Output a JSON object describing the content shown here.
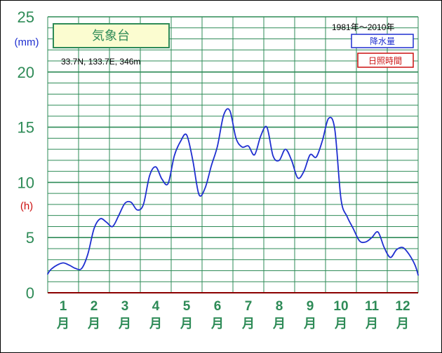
{
  "chart_data": {
    "type": "line",
    "title": "気象台",
    "period": "1981年〜2010年",
    "location": "33.7N,  133.7E,  346m",
    "y_unit_left": "(mm)",
    "y_unit_right": "(h)",
    "yticks": [
      "0",
      "5",
      "10",
      "15",
      "20",
      "25"
    ],
    "ylim": [
      0,
      25
    ],
    "xlim": [
      0.5,
      12.5
    ],
    "grid": true,
    "legend": [
      {
        "label": "降水量",
        "color": "#1f2fd0"
      },
      {
        "label": "日照時間",
        "color": "#cc1111"
      }
    ],
    "month_labels": [
      "1",
      "2",
      "3",
      "4",
      "5",
      "6",
      "7",
      "8",
      "9",
      "10",
      "11",
      "12"
    ],
    "month_suffix": "月",
    "series": [
      {
        "name": "降水量",
        "color": "#1f2fd0",
        "x": [
          0.5,
          0.6,
          0.8,
          1.0,
          1.2,
          1.4,
          1.6,
          1.8,
          2.0,
          2.2,
          2.4,
          2.6,
          2.8,
          3.0,
          3.2,
          3.4,
          3.6,
          3.8,
          4.0,
          4.2,
          4.4,
          4.6,
          4.8,
          5.0,
          5.2,
          5.4,
          5.6,
          5.8,
          6.0,
          6.2,
          6.4,
          6.6,
          6.8,
          7.0,
          7.2,
          7.4,
          7.6,
          7.8,
          8.0,
          8.2,
          8.4,
          8.6,
          8.8,
          9.0,
          9.2,
          9.4,
          9.6,
          9.8,
          10.0,
          10.2,
          10.4,
          10.6,
          10.8,
          11.0,
          11.2,
          11.4,
          11.6,
          11.8,
          12.0,
          12.2,
          12.4,
          12.5
        ],
        "values": [
          1.7,
          2.1,
          2.5,
          2.7,
          2.5,
          2.2,
          2.2,
          3.5,
          5.8,
          6.7,
          6.4,
          6.0,
          7.0,
          8.1,
          8.2,
          7.5,
          8.0,
          10.6,
          11.4,
          10.3,
          9.9,
          12.4,
          13.7,
          14.3,
          12.0,
          8.9,
          9.5,
          11.5,
          13.3,
          16.1,
          16.5,
          14.0,
          13.2,
          13.3,
          12.5,
          14.2,
          15.0,
          12.4,
          12.0,
          13.0,
          12.0,
          10.4,
          11.0,
          12.5,
          12.3,
          13.8,
          15.8,
          14.8,
          8.5,
          6.9,
          5.8,
          4.7,
          4.6,
          5.0,
          5.5,
          4.1,
          3.2,
          3.9,
          4.1,
          3.5,
          2.5,
          1.6
        ]
      }
    ]
  }
}
